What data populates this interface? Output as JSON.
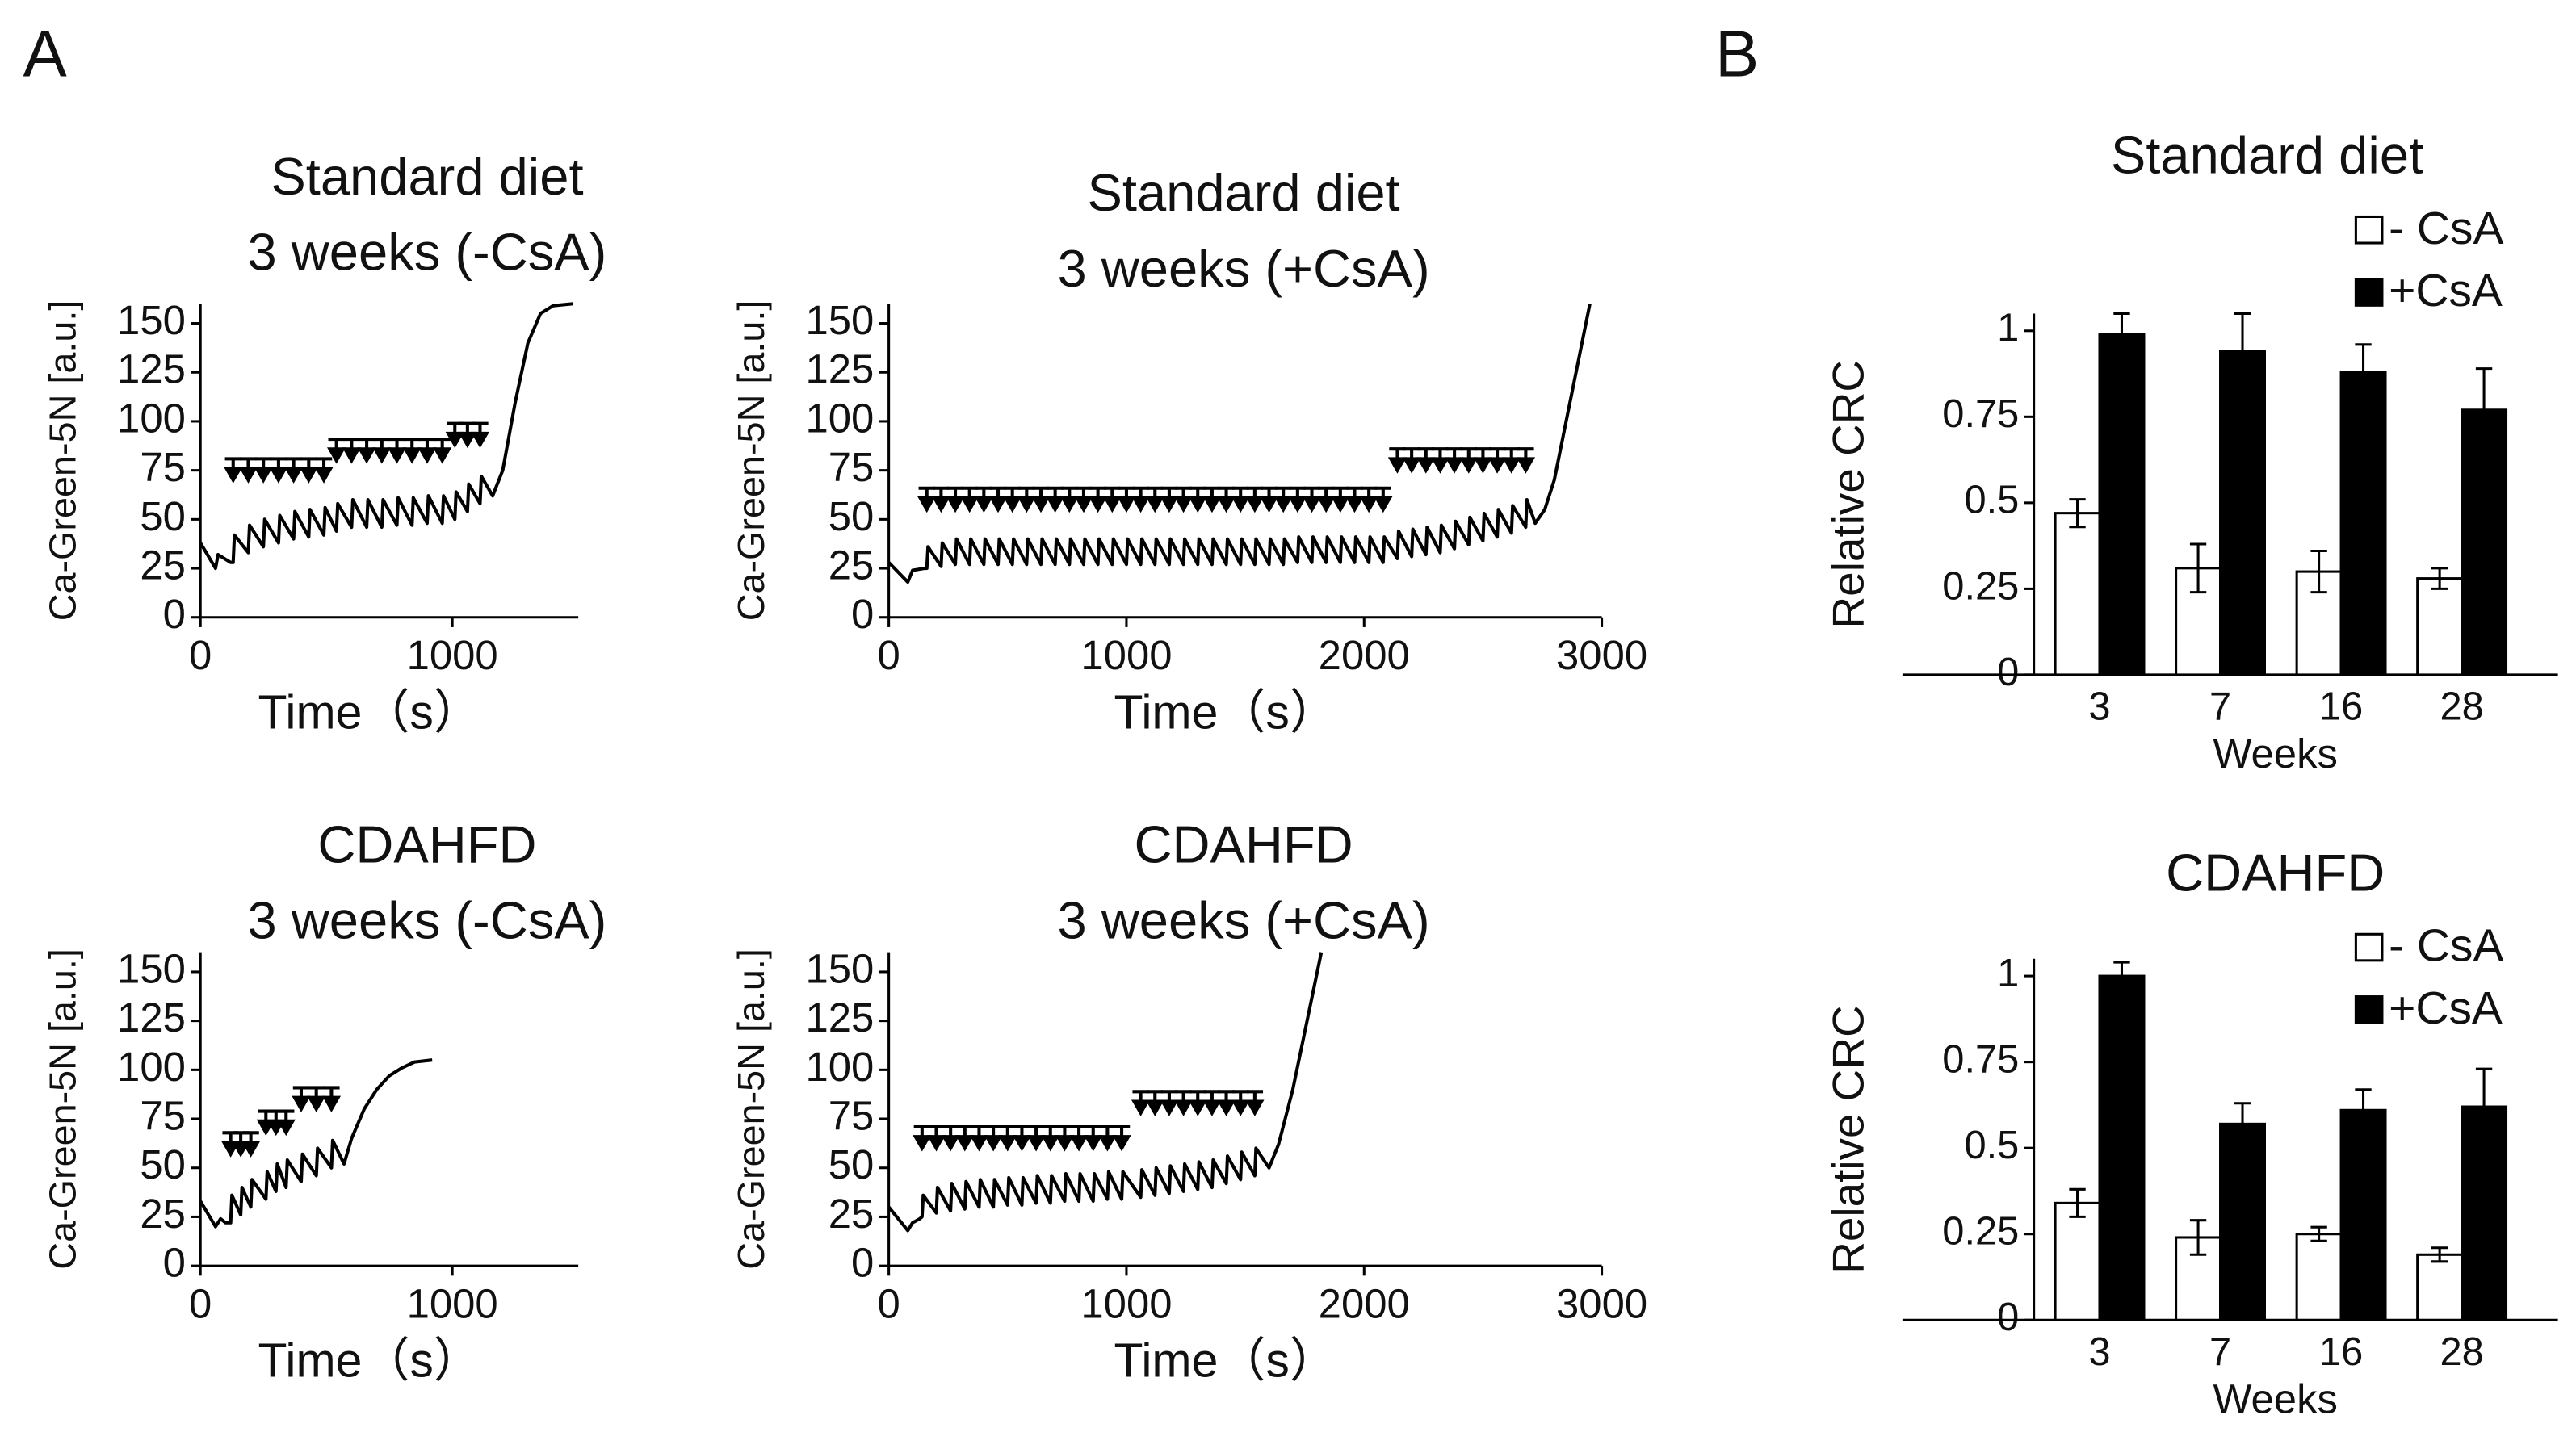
{
  "panel_labels": [
    "A",
    "B"
  ],
  "chart_data": [
    {
      "type": "line",
      "title": "Standard diet",
      "subtitle": "3 weeks (-CsA)",
      "xlabel": "Time（s）",
      "ylabel": "Ca-Green-5N [a.u.]",
      "xlim": [
        0,
        1500
      ],
      "xticks": [
        0,
        1000
      ],
      "ylim": [
        0,
        160
      ],
      "yticks": [
        0,
        25,
        50,
        75,
        100,
        125,
        150
      ],
      "color": "#000000",
      "x": [
        0,
        60,
        70,
        120,
        130,
        135,
        190,
        195,
        250,
        255,
        310,
        315,
        370,
        375,
        430,
        435,
        490,
        495,
        540,
        545,
        600,
        605,
        660,
        665,
        720,
        725,
        780,
        785,
        840,
        845,
        900,
        905,
        960,
        965,
        1010,
        1015,
        1060,
        1065,
        1110,
        1115,
        1160,
        1200,
        1250,
        1300,
        1350,
        1400,
        1480
      ],
      "values": [
        38,
        25,
        32,
        28,
        28,
        42,
        33,
        47,
        36,
        50,
        38,
        52,
        40,
        54,
        41,
        55,
        42,
        56,
        44,
        58,
        46,
        60,
        46,
        60,
        46,
        60,
        47,
        61,
        47,
        61,
        48,
        62,
        48,
        62,
        50,
        64,
        54,
        68,
        58,
        72,
        62,
        75,
        110,
        140,
        155,
        159,
        160
      ],
      "additions": {
        "x": [
          130,
          190,
          250,
          310,
          370,
          430,
          490,
          540,
          600,
          660,
          720,
          780,
          840,
          900,
          960,
          1010,
          1060,
          1110
        ],
        "y": [
          70,
          70,
          70,
          70,
          70,
          70,
          70,
          80,
          80,
          80,
          80,
          80,
          80,
          80,
          80,
          88,
          88,
          88
        ]
      }
    },
    {
      "type": "line",
      "title": "Standard diet",
      "subtitle": "3 weeks (+CsA)",
      "xlabel": "Time（s）",
      "ylabel": "Ca-Green-5N [a.u.]",
      "xlim": [
        0,
        3000
      ],
      "xticks": [
        0,
        1000,
        2000,
        3000
      ],
      "ylim": [
        0,
        160
      ],
      "yticks": [
        0,
        25,
        50,
        75,
        100,
        125,
        150
      ],
      "color": "#000000",
      "x": [
        0,
        80,
        100,
        150,
        160,
        165,
        220,
        225,
        280,
        285,
        340,
        345,
        400,
        405,
        460,
        465,
        520,
        525,
        580,
        585,
        640,
        645,
        700,
        705,
        760,
        765,
        820,
        825,
        880,
        885,
        940,
        945,
        1000,
        1005,
        1060,
        1065,
        1120,
        1125,
        1180,
        1185,
        1240,
        1245,
        1300,
        1305,
        1360,
        1365,
        1420,
        1425,
        1480,
        1485,
        1540,
        1545,
        1600,
        1605,
        1660,
        1665,
        1720,
        1725,
        1780,
        1785,
        1840,
        1845,
        1900,
        1905,
        1960,
        1965,
        2020,
        2025,
        2080,
        2085,
        2140,
        2145,
        2200,
        2205,
        2260,
        2265,
        2320,
        2325,
        2380,
        2385,
        2440,
        2445,
        2500,
        2505,
        2560,
        2565,
        2620,
        2625,
        2680,
        2685,
        2720,
        2760,
        2800,
        2850,
        2900,
        2950
      ],
      "values": [
        28,
        18,
        24,
        25,
        25,
        36,
        26,
        38,
        27,
        40,
        27,
        40,
        27,
        40,
        27,
        40,
        27,
        40,
        27,
        40,
        27,
        40,
        27,
        40,
        27,
        40,
        27,
        40,
        27,
        40,
        27,
        40,
        27,
        40,
        27,
        40,
        27,
        40,
        27,
        40,
        27,
        40,
        27,
        40,
        27,
        40,
        27,
        40,
        27,
        40,
        27,
        40,
        27,
        40,
        27,
        40,
        28,
        41,
        28,
        41,
        28,
        41,
        28,
        41,
        28,
        41,
        28,
        41,
        28,
        41,
        30,
        44,
        31,
        45,
        32,
        46,
        33,
        47,
        35,
        49,
        37,
        51,
        39,
        53,
        41,
        55,
        43,
        57,
        46,
        60,
        48,
        55,
        70,
        100,
        130,
        160
      ],
      "additions": {
        "x": [
          160,
          220,
          280,
          340,
          400,
          460,
          520,
          580,
          640,
          700,
          760,
          820,
          880,
          940,
          1000,
          1060,
          1120,
          1180,
          1240,
          1300,
          1360,
          1420,
          1480,
          1540,
          1600,
          1660,
          1720,
          1780,
          1840,
          1900,
          1960,
          2020,
          2080,
          2140,
          2200,
          2260,
          2320,
          2380,
          2440,
          2500,
          2560,
          2620,
          2680
        ],
        "y": [
          55,
          55,
          55,
          55,
          55,
          55,
          55,
          55,
          55,
          55,
          55,
          55,
          55,
          55,
          55,
          55,
          55,
          55,
          55,
          55,
          55,
          55,
          55,
          55,
          55,
          55,
          55,
          55,
          55,
          55,
          55,
          55,
          55,
          75,
          75,
          75,
          75,
          75,
          75,
          75,
          75,
          75,
          75
        ]
      }
    },
    {
      "type": "line",
      "title": "CDAHFD",
      "subtitle": "3 weeks (-CsA)",
      "xlabel": "Time（s）",
      "ylabel": "Ca-Green-5N [a.u.]",
      "xlim": [
        0,
        1500
      ],
      "xticks": [
        0,
        1000
      ],
      "ylim": [
        0,
        160
      ],
      "yticks": [
        0,
        25,
        50,
        75,
        100,
        125,
        150
      ],
      "color": "#000000",
      "x": [
        0,
        60,
        80,
        100,
        120,
        125,
        160,
        165,
        200,
        205,
        260,
        265,
        300,
        305,
        340,
        345,
        400,
        405,
        460,
        465,
        520,
        525,
        570,
        600,
        650,
        700,
        750,
        800,
        850,
        920
      ],
      "values": [
        33,
        20,
        24,
        22,
        22,
        36,
        26,
        40,
        30,
        44,
        34,
        48,
        38,
        52,
        40,
        54,
        43,
        57,
        46,
        60,
        50,
        64,
        52,
        65,
        80,
        90,
        97,
        101,
        104,
        105
      ],
      "additions": {
        "x": [
          120,
          160,
          200,
          260,
          300,
          340,
          400,
          460,
          520
        ],
        "y": [
          57,
          57,
          57,
          68,
          68,
          68,
          80,
          80,
          80
        ]
      }
    },
    {
      "type": "line",
      "title": "CDAHFD",
      "subtitle": "3 weeks (+CsA)",
      "xlabel": "Time（s）",
      "ylabel": "Ca-Green-5N [a.u.]",
      "xlim": [
        0,
        3000
      ],
      "xticks": [
        0,
        1000,
        2000,
        3000
      ],
      "ylim": [
        0,
        160
      ],
      "yticks": [
        0,
        25,
        50,
        75,
        100,
        125,
        150
      ],
      "color": "#000000",
      "x": [
        0,
        80,
        100,
        130,
        140,
        145,
        200,
        205,
        260,
        265,
        320,
        325,
        380,
        385,
        440,
        445,
        500,
        505,
        560,
        565,
        620,
        625,
        680,
        685,
        740,
        745,
        800,
        805,
        860,
        865,
        920,
        925,
        980,
        985,
        1060,
        1065,
        1120,
        1125,
        1180,
        1185,
        1240,
        1245,
        1300,
        1305,
        1360,
        1365,
        1420,
        1425,
        1480,
        1485,
        1540,
        1545,
        1600,
        1640,
        1700,
        1760,
        1820
      ],
      "values": [
        30,
        18,
        22,
        24,
        25,
        36,
        27,
        40,
        28,
        42,
        29,
        43,
        30,
        44,
        30,
        44,
        31,
        45,
        31,
        45,
        32,
        46,
        32,
        46,
        33,
        47,
        33,
        47,
        33,
        47,
        34,
        48,
        34,
        48,
        35,
        49,
        36,
        50,
        37,
        51,
        38,
        52,
        39,
        53,
        40,
        54,
        42,
        56,
        44,
        58,
        46,
        60,
        50,
        62,
        90,
        125,
        160
      ],
      "additions": {
        "x": [
          140,
          200,
          260,
          320,
          380,
          440,
          500,
          560,
          620,
          680,
          740,
          800,
          860,
          920,
          980,
          1060,
          1120,
          1180,
          1240,
          1300,
          1360,
          1420,
          1480,
          1540
        ],
        "y": [
          60,
          60,
          60,
          60,
          60,
          60,
          60,
          60,
          60,
          60,
          60,
          60,
          60,
          60,
          60,
          78,
          78,
          78,
          78,
          78,
          78,
          78,
          78,
          78
        ]
      }
    },
    {
      "type": "bar",
      "title": "Standard diet",
      "xlabel": "Weeks",
      "ylabel": "Relative CRC",
      "categories": [
        "3",
        "7",
        "16",
        "28"
      ],
      "ylim": [
        0,
        1.05
      ],
      "yticks": [
        0,
        0.25,
        0.5,
        0.75,
        1
      ],
      "series": [
        {
          "name": "- CsA",
          "color": "#ffffff",
          "edgecolor": "#000000",
          "values": [
            0.47,
            0.31,
            0.3,
            0.28
          ],
          "errors": [
            0.04,
            0.07,
            0.06,
            0.03
          ]
        },
        {
          "name": "+CsA",
          "color": "#000000",
          "edgecolor": "#000000",
          "values": [
            0.99,
            0.94,
            0.88,
            0.77
          ],
          "errors": [
            0.06,
            0.11,
            0.08,
            0.12
          ]
        }
      ]
    },
    {
      "type": "bar",
      "title": "CDAHFD",
      "xlabel": "Weeks",
      "ylabel": "Relative CRC",
      "categories": [
        "3",
        "7",
        "16",
        "28"
      ],
      "ylim": [
        0,
        1.05
      ],
      "yticks": [
        0,
        0.25,
        0.5,
        0.75,
        1
      ],
      "series": [
        {
          "name": "- CsA",
          "color": "#ffffff",
          "edgecolor": "#000000",
          "values": [
            0.34,
            0.24,
            0.25,
            0.19
          ],
          "errors": [
            0.04,
            0.05,
            0.02,
            0.02
          ]
        },
        {
          "name": "+CsA",
          "color": "#000000",
          "edgecolor": "#000000",
          "values": [
            1.0,
            0.57,
            0.61,
            0.62
          ],
          "errors": [
            0.04,
            0.06,
            0.06,
            0.11
          ]
        }
      ]
    }
  ]
}
